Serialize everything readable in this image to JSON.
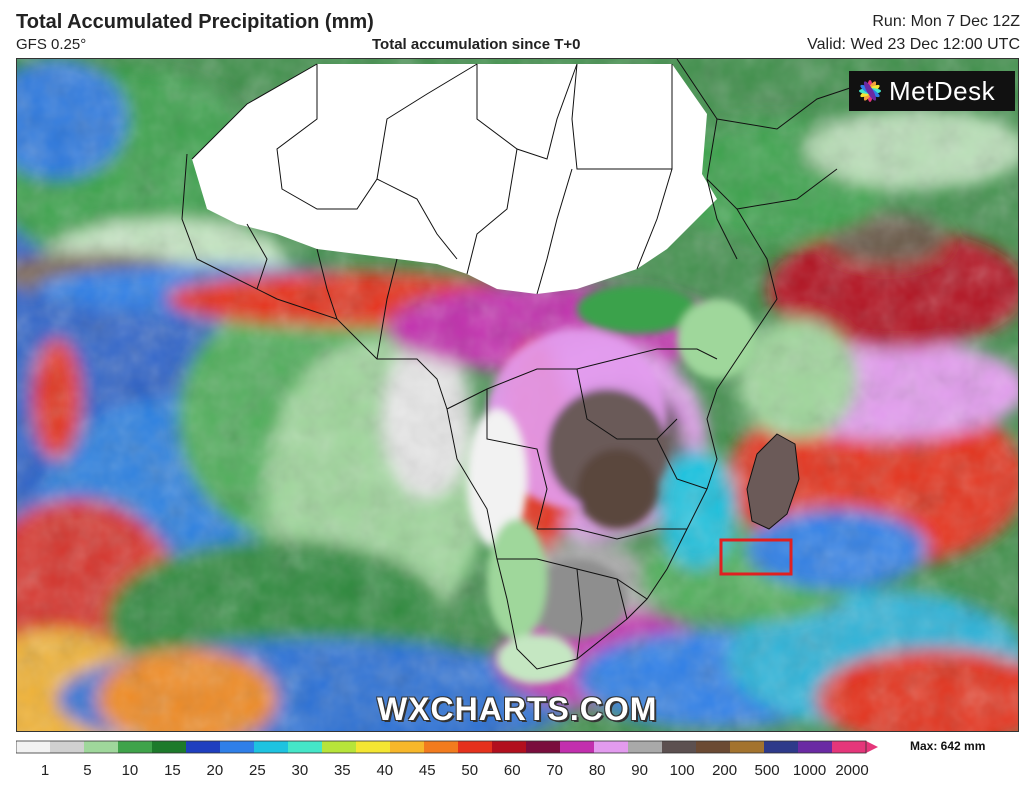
{
  "header": {
    "title": "Total Accumulated Precipitation (mm)",
    "model": "GFS 0.25°",
    "subtitle": "Total accumulation since T+0",
    "run": "Run: Mon 7 Dec 12Z",
    "valid": "Valid: Wed 23 Dec 12:00 UTC"
  },
  "logo": {
    "text": "MetDesk"
  },
  "watermark": "WXCHARTS.COM",
  "legend": {
    "max_label": "Max: 642 mm",
    "ticks": [
      "1",
      "5",
      "10",
      "15",
      "20",
      "25",
      "30",
      "35",
      "40",
      "45",
      "50",
      "60",
      "70",
      "80",
      "90",
      "100",
      "200",
      "500",
      "1000",
      "2000"
    ],
    "colors": [
      "#f2f2f2",
      "#d0d0d0",
      "#9fd79b",
      "#3fa34a",
      "#1d7a2b",
      "#1f3fbf",
      "#2f7fe8",
      "#1ec3e0",
      "#45e6c8",
      "#b7e43a",
      "#f4e632",
      "#f7b72a",
      "#f27b1e",
      "#e5311c",
      "#b20f1e",
      "#7a0d3d",
      "#c22fae",
      "#e39bef",
      "#a9a9a9",
      "#5c5050",
      "#6b4a33",
      "#a3732e",
      "#2e3a8a",
      "#6a2aa3",
      "#e5367a"
    ]
  },
  "highlight": {
    "color": "#e02020"
  }
}
